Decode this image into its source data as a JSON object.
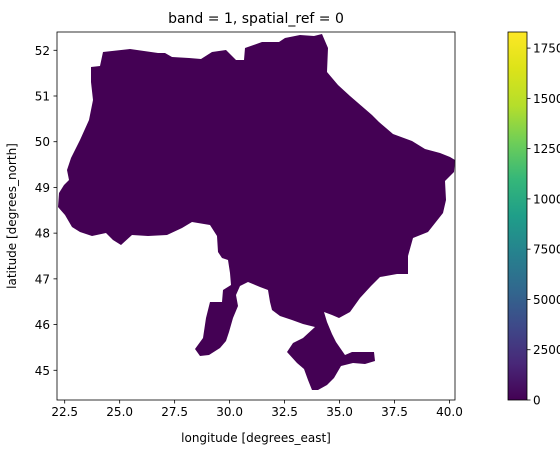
{
  "chart_data": {
    "type": "heatmap",
    "title": "band = 1, spatial_ref = 0",
    "xlabel": "longitude [degrees_east]",
    "ylabel": "latitude [degrees_north]",
    "xlim": [
      22.15,
      40.25
    ],
    "ylim": [
      44.35,
      52.4
    ],
    "x_ticks": [
      "22.5",
      "25.0",
      "27.5",
      "30.0",
      "32.5",
      "35.0",
      "37.5",
      "40.0"
    ],
    "y_ticks": [
      "45",
      "46",
      "47",
      "48",
      "49",
      "50",
      "51",
      "52"
    ],
    "colorbar": {
      "colormap": "viridis",
      "range": [
        0,
        18300
      ],
      "ticks": [
        "0",
        "2500",
        "5000",
        "7500",
        "10000",
        "12500",
        "15000",
        "17500"
      ]
    },
    "region_value": 0,
    "region_color": "#440154",
    "grid": false
  }
}
